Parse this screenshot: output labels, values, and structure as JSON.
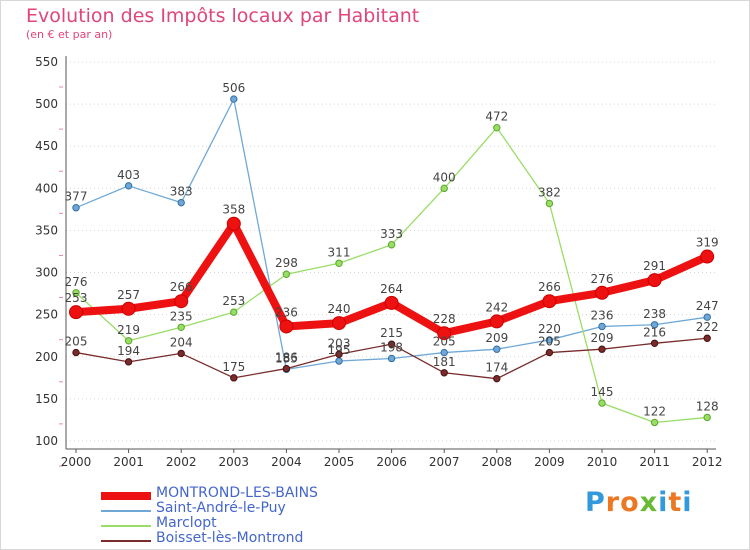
{
  "chart_data": {
    "type": "line",
    "title": "Evolution des Impôts locaux par Habitant",
    "subtitle": "(en € et par an)",
    "xlabel": "",
    "ylabel": "",
    "ylim": [
      100,
      550
    ],
    "yticks": [
      100,
      150,
      200,
      250,
      300,
      350,
      400,
      450,
      500,
      550
    ],
    "categories": [
      "2000",
      "2001",
      "2002",
      "2003",
      "2004",
      "2005",
      "2006",
      "2007",
      "2008",
      "2009",
      "2010",
      "2011",
      "2012"
    ],
    "grid": "horizontal dotted",
    "legend_position": "bottom-left",
    "series": [
      {
        "name": "MONTROND-LES-BAINS",
        "color": "#ee1111",
        "values": [
          253,
          257,
          266,
          358,
          236,
          240,
          264,
          228,
          242,
          266,
          276,
          291,
          319
        ]
      },
      {
        "name": "Saint-André-le-Puy",
        "color": "#6fa8d6",
        "values": [
          377,
          403,
          383,
          506,
          185,
          195,
          198,
          205,
          209,
          220,
          236,
          238,
          247
        ]
      },
      {
        "name": "Marclopt",
        "color": "#99dd66",
        "values": [
          276,
          219,
          235,
          253,
          298,
          311,
          333,
          400,
          472,
          382,
          145,
          122,
          128
        ]
      },
      {
        "name": "Boisset-lès-Montrond",
        "color": "#7a2b2b",
        "values": [
          205,
          194,
          204,
          175,
          186,
          203,
          215,
          181,
          174,
          205,
          209,
          216,
          222
        ]
      }
    ]
  },
  "legend_label_color": "#4466cc",
  "brand": {
    "text": "Proxiti",
    "colors": [
      "#3399dd",
      "#ee7722",
      "#ee7722",
      "#66bb33",
      "#3399dd",
      "#ee7722",
      "#3399dd"
    ]
  }
}
